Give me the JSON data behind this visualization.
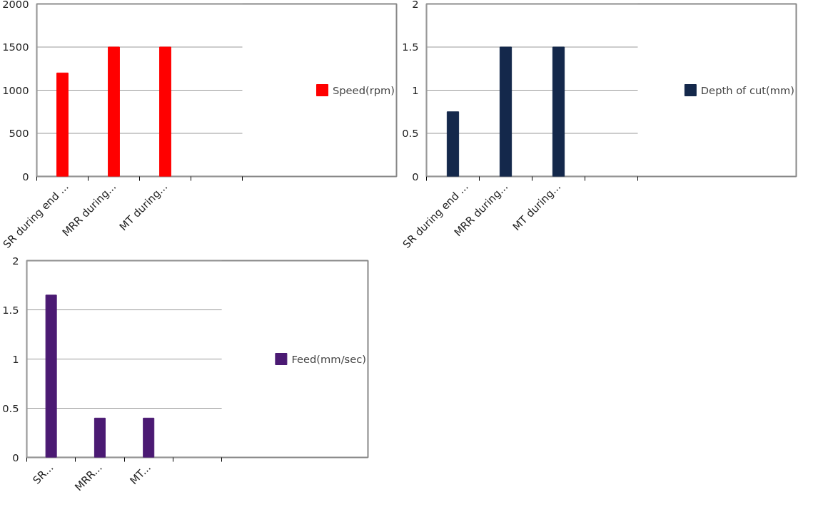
{
  "chart_data": [
    {
      "type": "bar",
      "categories": [
        "SR during end ...",
        "MRR during...",
        "MT during...",
        null
      ],
      "series": [
        {
          "name": "Speed(rpm)",
          "color": "#ff0000",
          "values": [
            1200,
            1500,
            1500,
            null
          ]
        }
      ],
      "ylim": [
        0,
        2000
      ],
      "yticks": [
        0,
        500,
        1000,
        1500,
        2000
      ],
      "grid": "y",
      "legend": "right"
    },
    {
      "type": "bar",
      "categories": [
        "SR during end ...",
        "MRR during...",
        "MT during...",
        null
      ],
      "series": [
        {
          "name": "Depth of cut(mm)",
          "color": "#14284b",
          "values": [
            0.75,
            1.5,
            1.5,
            null
          ]
        }
      ],
      "ylim": [
        0,
        2
      ],
      "yticks": [
        0,
        0.5,
        1,
        1.5,
        2
      ],
      "grid": "y",
      "legend": "right"
    },
    {
      "type": "bar",
      "categories": [
        "SR...",
        "MRR...",
        "MT...",
        null
      ],
      "series": [
        {
          "name": "Feed(mm/sec)",
          "color": "#4b1a73",
          "values": [
            1.65,
            0.4,
            0.4,
            null
          ]
        }
      ],
      "ylim": [
        0,
        2
      ],
      "yticks": [
        0,
        0.5,
        1,
        1.5,
        2
      ],
      "grid": "y",
      "legend": "right"
    }
  ]
}
